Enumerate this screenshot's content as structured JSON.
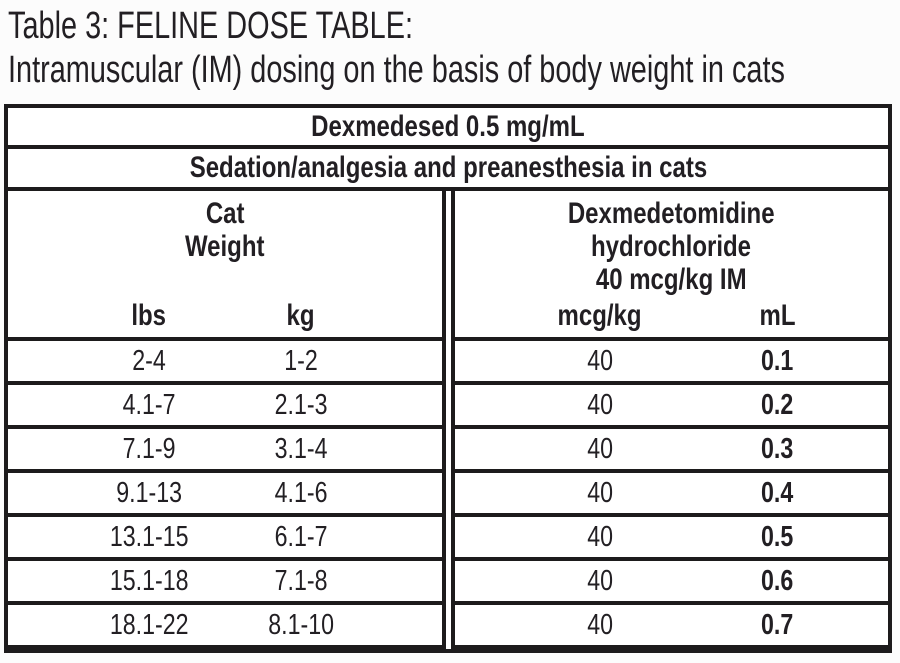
{
  "title": {
    "line1": "Table 3: FELINE DOSE TABLE:",
    "line2": "Intramuscular (IM) dosing on the basis of body weight in cats"
  },
  "table": {
    "product_header": "Dexmedesed 0.5 mg/mL",
    "indication_header": "Sedation/analgesia and preanesthesia in cats",
    "weight_group": {
      "label_line1": "Cat",
      "label_line2": "Weight",
      "col1": "lbs",
      "col2": "kg"
    },
    "dose_group": {
      "label_line1": "Dexmedetomidine",
      "label_line2": "hydrochloride",
      "label_line3": "40 mcg/kg IM",
      "col1": "mcg/kg",
      "col2": "mL"
    },
    "rows": [
      {
        "lbs": "2-4",
        "kg": "1-2",
        "mcg_kg": "40",
        "ml": "0.1"
      },
      {
        "lbs": "4.1-7",
        "kg": "2.1-3",
        "mcg_kg": "40",
        "ml": "0.2"
      },
      {
        "lbs": "7.1-9",
        "kg": "3.1-4",
        "mcg_kg": "40",
        "ml": "0.3"
      },
      {
        "lbs": "9.1-13",
        "kg": "4.1-6",
        "mcg_kg": "40",
        "ml": "0.4"
      },
      {
        "lbs": "13.1-15",
        "kg": "6.1-7",
        "mcg_kg": "40",
        "ml": "0.5"
      },
      {
        "lbs": "15.1-18",
        "kg": "7.1-8",
        "mcg_kg": "40",
        "ml": "0.6"
      },
      {
        "lbs": "18.1-22",
        "kg": "8.1-10",
        "mcg_kg": "40",
        "ml": "0.7"
      }
    ]
  },
  "colors": {
    "text": "#221f23",
    "border": "#1d1b1c",
    "background": "#ffffff"
  }
}
